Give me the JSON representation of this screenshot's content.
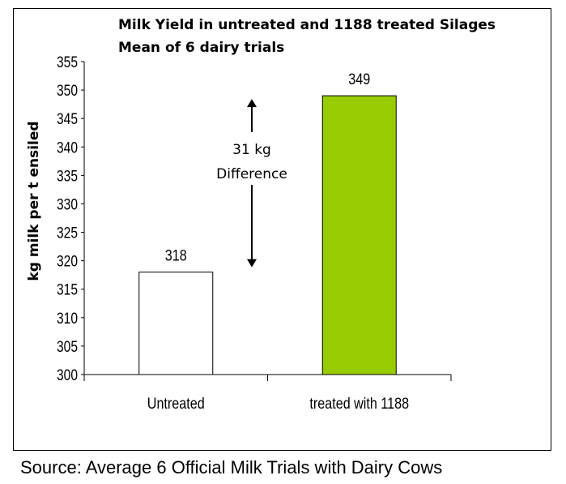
{
  "chart_data": {
    "type": "bar",
    "title": "Milk Yield in untreated and 1188 treated Silages",
    "subtitle": "Mean of 6 dairy trials",
    "xlabel": "",
    "ylabel": "kg milk per t ensiled",
    "ylim": [
      300,
      355
    ],
    "yticks": [
      300,
      305,
      310,
      315,
      320,
      325,
      330,
      335,
      340,
      345,
      350,
      355
    ],
    "categories": [
      "Untreated",
      "treated with  1188"
    ],
    "values": [
      318,
      349
    ],
    "data_labels": [
      "318",
      "349"
    ],
    "colors": [
      "#ffffff",
      "#99cc00"
    ],
    "grid": false,
    "annotation": {
      "line1": "31 kg",
      "line2": "Difference",
      "from": 318,
      "to": 349
    }
  },
  "source": "Source: Average 6 Official Milk Trials with Dairy Cows"
}
